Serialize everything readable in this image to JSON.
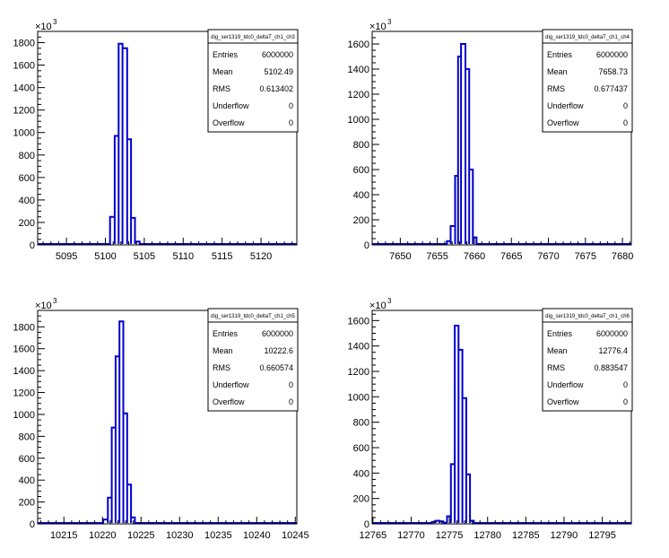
{
  "chart_data": [
    {
      "type": "histogram",
      "title": "dig_ser1319_tdc0_deltaT_ch1_ch3",
      "exponent_label": "×10",
      "exponent": "3",
      "xlim": [
        5091.3,
        5124.6
      ],
      "ylim": [
        0,
        1900
      ],
      "x_ticks": [
        5095,
        5100,
        5105,
        5110,
        5115,
        5120
      ],
      "x_tick_labels": [
        "5095",
        "5100",
        "5105",
        "5110",
        "5115",
        "5120"
      ],
      "y_ticks": [
        0,
        200,
        400,
        600,
        800,
        1000,
        1200,
        1400,
        1600,
        1800
      ],
      "y_tick_labels": [
        "0",
        "200",
        "400",
        "600",
        "800",
        "1000",
        "1200",
        "1400",
        "1600",
        "1800"
      ],
      "line_color": "#0000cc",
      "bins": [
        {
          "x0": 5100.6,
          "x1": 5101.2,
          "y": 250
        },
        {
          "x0": 5101.2,
          "x1": 5101.7,
          "y": 970
        },
        {
          "x0": 5101.7,
          "x1": 5102.2,
          "y": 1790
        },
        {
          "x0": 5102.2,
          "x1": 5102.8,
          "y": 1750
        },
        {
          "x0": 5102.8,
          "x1": 5103.3,
          "y": 940
        },
        {
          "x0": 5103.3,
          "x1": 5103.8,
          "y": 240
        },
        {
          "x0": 5103.8,
          "x1": 5104.4,
          "y": 30
        }
      ],
      "stats": [
        {
          "label": "Entries",
          "value": "6000000"
        },
        {
          "label": "Mean",
          "value": "5102.49"
        },
        {
          "label": "RMS",
          "value": "0.613402"
        },
        {
          "label": "Underflow",
          "value": "0"
        },
        {
          "label": "Overflow",
          "value": "0"
        }
      ]
    },
    {
      "type": "histogram",
      "title": "dig_ser1319_tdc0_deltaT_ch1_ch4",
      "exponent_label": "×10",
      "exponent": "3",
      "xlim": [
        7646.2,
        7681.2
      ],
      "ylim": [
        0,
        1700
      ],
      "x_ticks": [
        7650,
        7655,
        7660,
        7665,
        7670,
        7675,
        7680
      ],
      "x_tick_labels": [
        "7650",
        "7655",
        "7660",
        "7665",
        "7670",
        "7675",
        "7680"
      ],
      "y_ticks": [
        0,
        200,
        400,
        600,
        800,
        1000,
        1200,
        1400,
        1600
      ],
      "y_tick_labels": [
        "0",
        "200",
        "400",
        "600",
        "800",
        "1000",
        "1200",
        "1400",
        "1600"
      ],
      "line_color": "#0000cc",
      "bins": [
        {
          "x0": 7656.3,
          "x1": 7656.8,
          "y": 30
        },
        {
          "x0": 7656.8,
          "x1": 7657.4,
          "y": 150
        },
        {
          "x0": 7657.4,
          "x1": 7657.8,
          "y": 550
        },
        {
          "x0": 7657.8,
          "x1": 7658.2,
          "y": 1500
        },
        {
          "x0": 7658.2,
          "x1": 7658.8,
          "y": 1600
        },
        {
          "x0": 7658.8,
          "x1": 7659.3,
          "y": 1400
        },
        {
          "x0": 7659.3,
          "x1": 7659.8,
          "y": 600
        },
        {
          "x0": 7659.8,
          "x1": 7660.3,
          "y": 60
        }
      ],
      "stats": [
        {
          "label": "Entries",
          "value": "6000000"
        },
        {
          "label": "Mean",
          "value": "7658.73"
        },
        {
          "label": "RMS",
          "value": "0.677437"
        },
        {
          "label": "Underflow",
          "value": "0"
        },
        {
          "label": "Overflow",
          "value": "0"
        }
      ]
    },
    {
      "type": "histogram",
      "title": "dig_ser1319_tdc0_deltaT_ch1_ch5",
      "exponent_label": "×10",
      "exponent": "3",
      "xlim": [
        10211.6,
        10245.2
      ],
      "ylim": [
        0,
        1950
      ],
      "x_ticks": [
        10215,
        10220,
        10225,
        10230,
        10235,
        10240,
        10245
      ],
      "x_tick_labels": [
        "10215",
        "10220",
        "10225",
        "10230",
        "10235",
        "10240",
        "10245"
      ],
      "y_ticks": [
        0,
        200,
        400,
        600,
        800,
        1000,
        1200,
        1400,
        1600,
        1800
      ],
      "y_tick_labels": [
        "0",
        "200",
        "400",
        "600",
        "800",
        "1000",
        "1200",
        "1400",
        "1600",
        "1800"
      ],
      "line_color": "#0000cc",
      "bins": [
        {
          "x0": 10220.1,
          "x1": 10220.7,
          "y": 40
        },
        {
          "x0": 10220.7,
          "x1": 10221.2,
          "y": 240
        },
        {
          "x0": 10221.2,
          "x1": 10221.7,
          "y": 880
        },
        {
          "x0": 10221.7,
          "x1": 10222.2,
          "y": 1530
        },
        {
          "x0": 10222.2,
          "x1": 10222.7,
          "y": 1850
        },
        {
          "x0": 10222.7,
          "x1": 10223.2,
          "y": 1010
        },
        {
          "x0": 10223.2,
          "x1": 10223.7,
          "y": 360
        },
        {
          "x0": 10223.7,
          "x1": 10224.2,
          "y": 60
        }
      ],
      "stats": [
        {
          "label": "Entries",
          "value": "6000000"
        },
        {
          "label": "Mean",
          "value": "10222.6"
        },
        {
          "label": "RMS",
          "value": "0.660574"
        },
        {
          "label": "Underflow",
          "value": "0"
        },
        {
          "label": "Overflow",
          "value": "0"
        }
      ]
    },
    {
      "type": "histogram",
      "title": "dig_ser1319_tdc0_deltaT_ch1_ch6",
      "exponent_label": "×10",
      "exponent": "3",
      "xlim": [
        12764.9,
        12798.8
      ],
      "ylim": [
        0,
        1680
      ],
      "x_ticks": [
        12765,
        12770,
        12775,
        12780,
        12785,
        12790,
        12795
      ],
      "x_tick_labels": [
        "12765",
        "12770",
        "12775",
        "12780",
        "12785",
        "12790",
        "12795"
      ],
      "y_ticks": [
        0,
        200,
        400,
        600,
        800,
        1000,
        1200,
        1400,
        1600
      ],
      "y_tick_labels": [
        "0",
        "200",
        "400",
        "600",
        "800",
        "1000",
        "1200",
        "1400",
        "1600"
      ],
      "line_color": "#0000cc",
      "bins": [
        {
          "x0": 12772.7,
          "x1": 12773.2,
          "y": 15
        },
        {
          "x0": 12773.2,
          "x1": 12773.7,
          "y": 25
        },
        {
          "x0": 12773.7,
          "x1": 12774.2,
          "y": 20
        },
        {
          "x0": 12774.2,
          "x1": 12774.7,
          "y": 10
        },
        {
          "x0": 12774.7,
          "x1": 12775.2,
          "y": 60
        },
        {
          "x0": 12775.2,
          "x1": 12775.7,
          "y": 470
        },
        {
          "x0": 12775.7,
          "x1": 12776.2,
          "y": 1560
        },
        {
          "x0": 12776.2,
          "x1": 12776.7,
          "y": 1370
        },
        {
          "x0": 12776.7,
          "x1": 12777.2,
          "y": 990
        },
        {
          "x0": 12777.2,
          "x1": 12777.7,
          "y": 390
        },
        {
          "x0": 12777.7,
          "x1": 12778.2,
          "y": 25
        }
      ],
      "stats": [
        {
          "label": "Entries",
          "value": "6000000"
        },
        {
          "label": "Mean",
          "value": "12776.4"
        },
        {
          "label": "RMS",
          "value": "0.883547"
        },
        {
          "label": "Underflow",
          "value": "0"
        },
        {
          "label": "Overflow",
          "value": "0"
        }
      ]
    }
  ]
}
